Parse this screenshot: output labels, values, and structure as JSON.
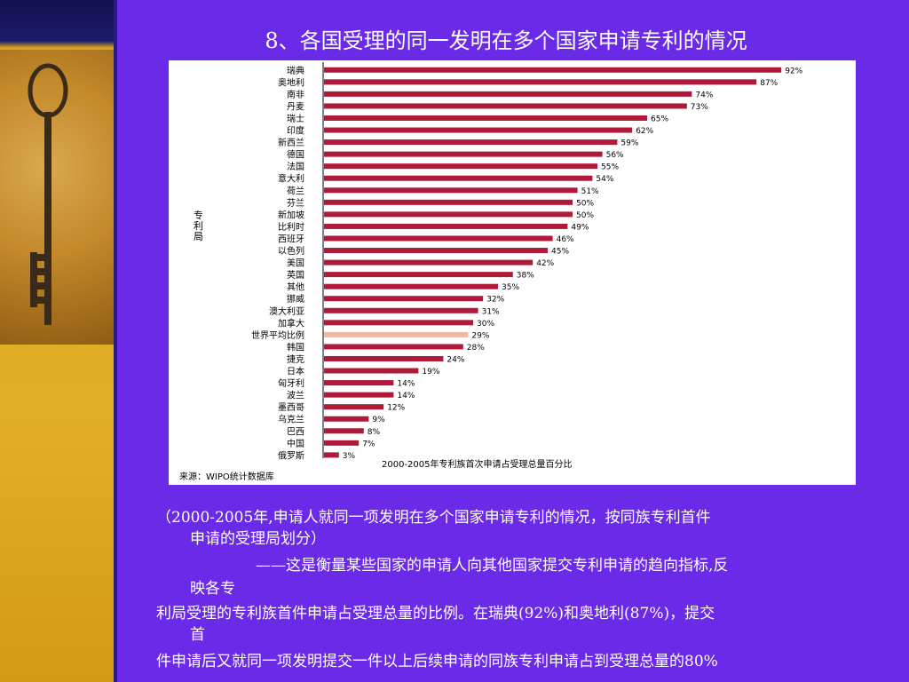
{
  "slide": {
    "title": "8、各国受理的同一发明在多个国家申请专利的情况",
    "paragraphs": [
      "（2000-2005年,申请人就同一项发明在多个国家申请专利的情况，按同族专利首件",
      "申请的受理局划分）",
      "——这是衡量某些国家的申请人向其他国家提交专利申请的趋向指标,反",
      "映各专",
      "利局受理的专利族首件申请占受理总量的比例。在瑞典(92%)和奥地利(87%)，提交",
      "首",
      "件申请后又就同一项发明提交一件以上后续申请的同族专利申请占到受理总量的80%"
    ]
  },
  "colors": {
    "background": "#6a2ae8",
    "bar": "#b01a3a",
    "highlight_bar": "#f3b8a0"
  },
  "chart_data": {
    "type": "bar",
    "orientation": "horizontal",
    "ylabel": "专利局",
    "xlabel": "2000-2005年专利族首次申请占受理总量百分比",
    "source": "来源：WIPO统计数据库",
    "value_suffix": "%",
    "xlim": [
      0,
      100
    ],
    "highlight": "世界平均比例",
    "categories": [
      "瑞典",
      "奥地利",
      "南非",
      "丹麦",
      "瑞士",
      "印度",
      "新西兰",
      "德国",
      "法国",
      "意大利",
      "荷兰",
      "芬兰",
      "新加坡",
      "比利时",
      "西班牙",
      "以色列",
      "美国",
      "英国",
      "其他",
      "挪威",
      "澳大利亚",
      "加拿大",
      "世界平均比例",
      "韩国",
      "捷克",
      "日本",
      "匈牙利",
      "波兰",
      "墨西哥",
      "乌克兰",
      "巴西",
      "中国",
      "俄罗斯"
    ],
    "values": [
      92,
      87,
      74,
      73,
      65,
      62,
      59,
      56,
      55,
      54,
      51,
      50,
      50,
      49,
      46,
      45,
      42,
      38,
      35,
      32,
      31,
      30,
      29,
      28,
      24,
      19,
      14,
      14,
      12,
      9,
      8,
      7,
      3
    ]
  }
}
